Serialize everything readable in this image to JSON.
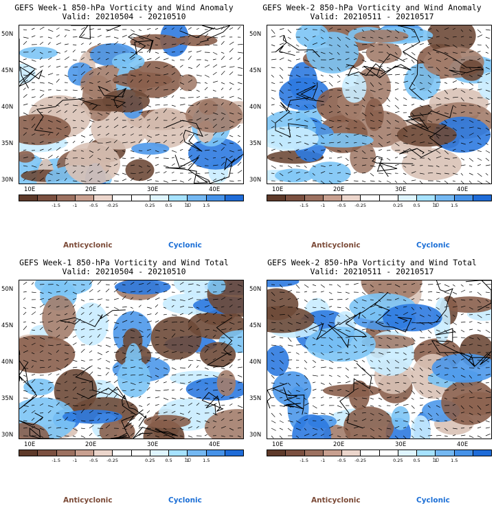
{
  "panels": [
    {
      "title": "GEFS Week-1 850-hPa Vorticity and Wind Anomaly",
      "valid": "Valid: 20210504 - 20210510"
    },
    {
      "title": "GEFS Week-2 850-hPa Vorticity and Wind Anomaly",
      "valid": "Valid: 20210511 - 20210517"
    },
    {
      "title": "GEFS Week-1 850-hPa Vorticity and Wind Total",
      "valid": "Valid: 20210504 - 20210510"
    },
    {
      "title": "GEFS Week-2 850-hPa Vorticity and Wind Total",
      "valid": "Valid: 20210511 - 20210517"
    }
  ],
  "lat_labels": [
    "50N",
    "45N",
    "40N",
    "35N",
    "30N"
  ],
  "lon_labels": [
    "10E",
    "20E",
    "30E",
    "40E"
  ],
  "colorbar": {
    "labels": [
      "-1.5",
      "-1",
      "-0.5",
      "-0.25",
      "0.25",
      "0.5",
      "1",
      "1.5"
    ],
    "unit": "10",
    "colors": [
      "#5e3a2a",
      "#7b5040",
      "#9c7160",
      "#c8a090",
      "#ecd6cc",
      "#ffffff",
      "#ffffff",
      "#dff5ff",
      "#a6e2ff",
      "#74b8f2",
      "#4692e8",
      "#1f6cd8"
    ]
  },
  "legend": {
    "anticyclonic": "Anticyclonic",
    "cyclonic": "Cyclonic"
  }
}
